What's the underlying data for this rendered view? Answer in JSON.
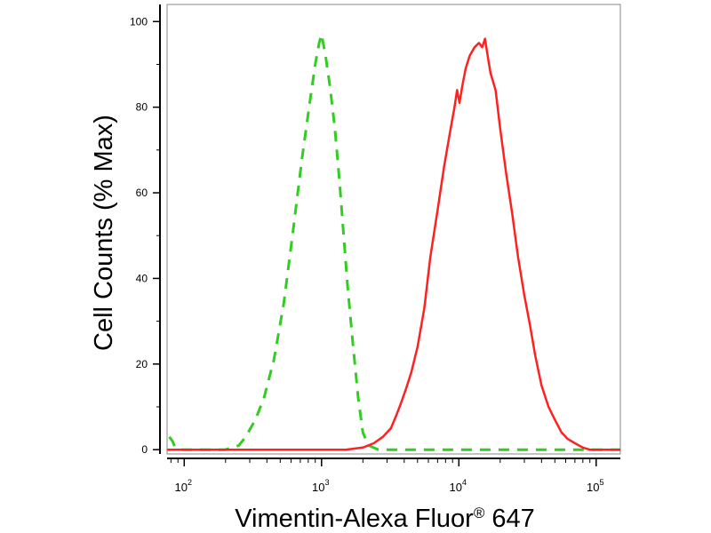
{
  "chart_data": {
    "type": "line",
    "title": "",
    "xlabel": "Vimentin-Alexa Fluor",
    "xlabel_superscript": "®",
    "xlabel_suffix": " 647",
    "ylabel": "Cell Counts (% Max)",
    "xscale": "log",
    "xlim": [
      75,
      150000
    ],
    "ylim": [
      -1,
      104
    ],
    "grid": false,
    "y_ticks": [
      0,
      20,
      40,
      60,
      80,
      100
    ],
    "y_tick_labels": [
      "0",
      "20",
      "40",
      "60",
      "80",
      "100"
    ],
    "x_ticks": [
      100,
      1000,
      10000,
      100000
    ],
    "x_tick_labels": [
      {
        "base": "10",
        "exp": "2"
      },
      {
        "base": "10",
        "exp": "3"
      },
      {
        "base": "10",
        "exp": "4"
      },
      {
        "base": "10",
        "exp": "5"
      }
    ],
    "series": [
      {
        "color": "#33cc22",
        "dash": "dashed",
        "x": [
          78,
          82,
          86,
          95,
          130,
          200,
          250,
          280,
          330,
          380,
          450,
          530,
          620,
          720,
          820,
          900,
          960,
          1000,
          1070,
          1150,
          1250,
          1350,
          1450,
          1550,
          1700,
          1850,
          2000,
          2200,
          2600,
          3500,
          7000,
          20000,
          60000,
          150000
        ],
        "y": [
          3,
          2,
          0.5,
          0,
          0,
          0,
          1,
          3,
          7,
          12,
          21,
          34,
          51,
          68,
          81,
          90,
          95,
          97,
          92,
          85,
          75,
          63,
          50,
          38,
          24,
          12,
          4,
          1,
          0,
          0,
          0,
          0,
          0,
          0
        ]
      },
      {
        "color": "#ff2020",
        "dash": "solid",
        "x": [
          75,
          200,
          500,
          1000,
          1500,
          2000,
          2400,
          2800,
          3200,
          3500,
          3800,
          4100,
          4500,
          5000,
          5600,
          6200,
          7000,
          7800,
          8600,
          9300,
          9700,
          10100,
          10600,
          11200,
          12000,
          13000,
          14000,
          14800,
          15500,
          16200,
          17000,
          18500,
          20000,
          22000,
          24500,
          27000,
          30000,
          33000,
          36000,
          40000,
          45000,
          50000,
          56000,
          62000,
          70000,
          80000,
          90000,
          100000,
          150000
        ],
        "y": [
          0,
          0,
          0,
          0,
          0,
          0.5,
          1.5,
          3,
          5,
          8,
          11,
          14,
          18,
          24,
          33,
          45,
          56,
          66,
          74,
          80,
          84,
          81,
          85,
          89,
          92,
          94,
          95,
          94,
          96,
          92,
          88,
          84,
          75,
          65,
          55,
          45,
          36,
          29,
          22,
          15,
          10,
          7,
          4,
          2.5,
          1.5,
          0.5,
          0,
          0,
          0
        ]
      }
    ]
  }
}
